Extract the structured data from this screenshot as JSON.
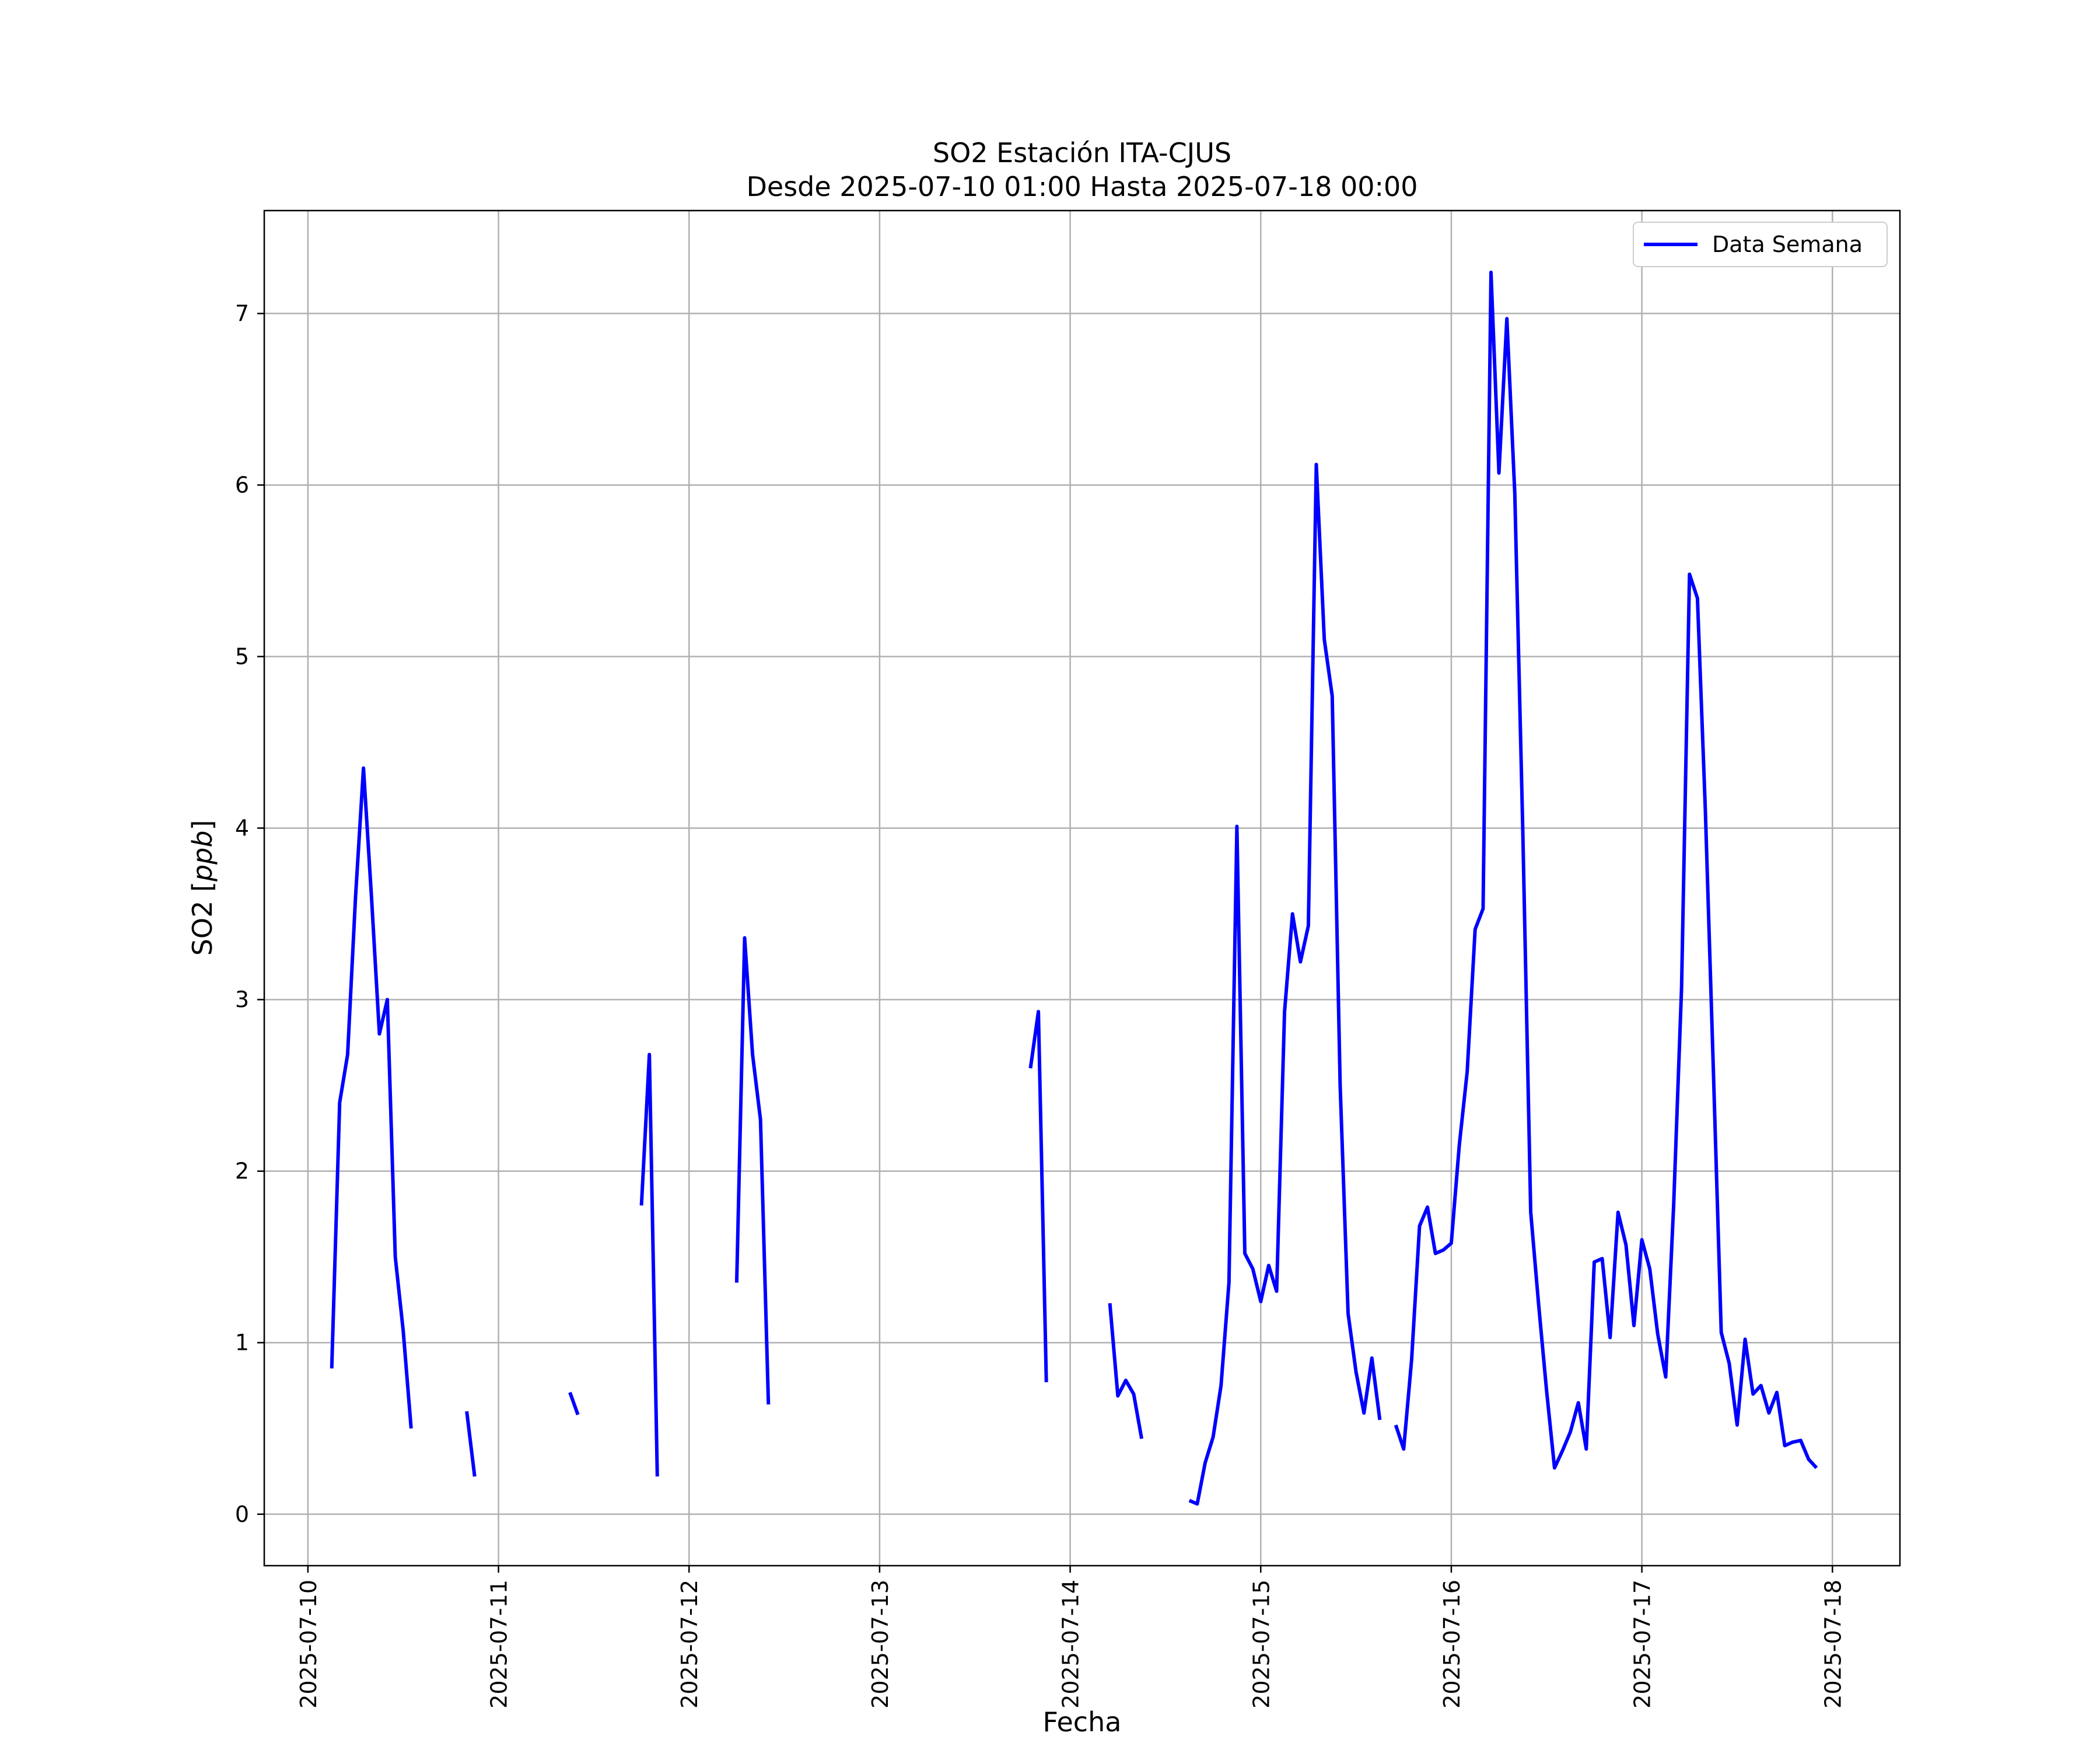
{
  "chart_data": {
    "type": "line",
    "title": "SO2 Estación ITA-CJUS",
    "subtitle": "Desde 2025-07-10 01:00 Hasta 2025-07-18 00:00",
    "xlabel": "Fecha",
    "ylabel_text": "SO2 [",
    "ylabel_unit": "ppb",
    "ylabel_close": "]",
    "ylim": [
      -0.3,
      7.6
    ],
    "xlim": [
      "2025-07-09 18:30",
      "2025-07-18 08:30"
    ],
    "x_ticks": [
      "2025-07-10",
      "2025-07-11",
      "2025-07-12",
      "2025-07-13",
      "2025-07-14",
      "2025-07-15",
      "2025-07-16",
      "2025-07-17",
      "2025-07-18"
    ],
    "y_ticks": [
      0,
      1,
      2,
      3,
      4,
      5,
      6,
      7
    ],
    "grid": true,
    "legend": "upper right",
    "series": [
      {
        "name": "Data Semana",
        "color": "#0000ff",
        "segments": [
          [
            [
              "2025-07-10 03:00",
              0.85
            ],
            [
              "2025-07-10 04:00",
              2.4
            ],
            [
              "2025-07-10 05:00",
              2.68
            ],
            [
              "2025-07-10 06:00",
              3.6
            ],
            [
              "2025-07-10 07:00",
              4.35
            ],
            [
              "2025-07-10 08:00",
              3.6
            ],
            [
              "2025-07-10 09:00",
              2.8
            ],
            [
              "2025-07-10 10:00",
              3.0
            ],
            [
              "2025-07-10 11:00",
              1.5
            ],
            [
              "2025-07-10 12:00",
              1.07
            ],
            [
              "2025-07-10 13:00",
              0.5
            ]
          ],
          [
            [
              "2025-07-10 20:00",
              0.6
            ],
            [
              "2025-07-10 21:00",
              0.22
            ]
          ],
          [
            [
              "2025-07-11 09:00",
              0.71
            ],
            [
              "2025-07-11 10:00",
              0.58
            ]
          ],
          [
            [
              "2025-07-11 18:00",
              1.8
            ],
            [
              "2025-07-11 19:00",
              2.68
            ],
            [
              "2025-07-11 20:00",
              0.22
            ]
          ],
          [
            [
              "2025-07-12 06:00",
              1.35
            ],
            [
              "2025-07-12 07:00",
              3.36
            ],
            [
              "2025-07-12 08:00",
              2.68
            ],
            [
              "2025-07-12 09:00",
              2.3
            ],
            [
              "2025-07-12 10:00",
              0.64
            ]
          ],
          [
            [
              "2025-07-13 19:00",
              2.6
            ],
            [
              "2025-07-13 20:00",
              2.93
            ],
            [
              "2025-07-13 21:00",
              0.77
            ]
          ],
          [
            [
              "2025-07-14 05:00",
              1.23
            ],
            [
              "2025-07-14 06:00",
              0.69
            ],
            [
              "2025-07-14 07:00",
              0.78
            ],
            [
              "2025-07-14 08:00",
              0.7
            ],
            [
              "2025-07-14 09:00",
              0.44
            ]
          ],
          [
            [
              "2025-07-14 15:00",
              0.08
            ],
            [
              "2025-07-14 16:00",
              0.06
            ],
            [
              "2025-07-14 17:00",
              0.3
            ],
            [
              "2025-07-14 18:00",
              0.45
            ],
            [
              "2025-07-14 19:00",
              0.75
            ],
            [
              "2025-07-14 20:00",
              1.35
            ],
            [
              "2025-07-14 21:00",
              4.01
            ],
            [
              "2025-07-14 22:00",
              1.52
            ],
            [
              "2025-07-14 23:00",
              1.43
            ],
            [
              "2025-07-15 00:00",
              1.24
            ],
            [
              "2025-07-15 01:00",
              1.45
            ],
            [
              "2025-07-15 02:00",
              1.3
            ],
            [
              "2025-07-15 03:00",
              2.93
            ],
            [
              "2025-07-15 04:00",
              3.5
            ],
            [
              "2025-07-15 05:00",
              3.22
            ],
            [
              "2025-07-15 06:00",
              3.43
            ],
            [
              "2025-07-15 07:00",
              6.12
            ],
            [
              "2025-07-15 08:00",
              5.1
            ],
            [
              "2025-07-15 09:00",
              4.77
            ],
            [
              "2025-07-15 10:00",
              2.5
            ],
            [
              "2025-07-15 11:00",
              1.17
            ],
            [
              "2025-07-15 12:00",
              0.83
            ],
            [
              "2025-07-15 13:00",
              0.59
            ],
            [
              "2025-07-15 14:00",
              0.91
            ],
            [
              "2025-07-15 15:00",
              0.55
            ]
          ],
          [
            [
              "2025-07-15 17:00",
              0.52
            ],
            [
              "2025-07-15 18:00",
              0.38
            ],
            [
              "2025-07-15 19:00",
              0.9
            ],
            [
              "2025-07-15 20:00",
              1.68
            ],
            [
              "2025-07-15 21:00",
              1.79
            ],
            [
              "2025-07-15 22:00",
              1.52
            ],
            [
              "2025-07-15 23:00",
              1.54
            ],
            [
              "2025-07-16 00:00",
              1.58
            ],
            [
              "2025-07-16 01:00",
              2.15
            ],
            [
              "2025-07-16 02:00",
              2.58
            ],
            [
              "2025-07-16 03:00",
              3.41
            ],
            [
              "2025-07-16 04:00",
              3.53
            ],
            [
              "2025-07-16 05:00",
              7.24
            ],
            [
              "2025-07-16 06:00",
              6.07
            ],
            [
              "2025-07-16 07:00",
              6.97
            ],
            [
              "2025-07-16 08:00",
              5.95
            ],
            [
              "2025-07-16 09:00",
              4.0
            ],
            [
              "2025-07-16 10:00",
              1.76
            ],
            [
              "2025-07-16 11:00",
              1.22
            ],
            [
              "2025-07-16 12:00",
              0.72
            ],
            [
              "2025-07-16 13:00",
              0.27
            ],
            [
              "2025-07-16 14:00",
              0.37
            ],
            [
              "2025-07-16 15:00",
              0.48
            ],
            [
              "2025-07-16 16:00",
              0.65
            ],
            [
              "2025-07-16 17:00",
              0.38
            ],
            [
              "2025-07-16 18:00",
              1.47
            ],
            [
              "2025-07-16 19:00",
              1.49
            ],
            [
              "2025-07-16 20:00",
              1.03
            ],
            [
              "2025-07-16 21:00",
              1.76
            ],
            [
              "2025-07-16 22:00",
              1.57
            ],
            [
              "2025-07-16 23:00",
              1.1
            ],
            [
              "2025-07-17 00:00",
              1.6
            ],
            [
              "2025-07-17 01:00",
              1.43
            ],
            [
              "2025-07-17 02:00",
              1.05
            ],
            [
              "2025-07-17 03:00",
              0.8
            ],
            [
              "2025-07-17 04:00",
              1.8
            ],
            [
              "2025-07-17 05:00",
              3.07
            ],
            [
              "2025-07-17 06:00",
              5.48
            ],
            [
              "2025-07-17 07:00",
              5.34
            ],
            [
              "2025-07-17 08:00",
              4.1
            ],
            [
              "2025-07-17 09:00",
              2.6
            ],
            [
              "2025-07-17 10:00",
              1.06
            ],
            [
              "2025-07-17 11:00",
              0.88
            ],
            [
              "2025-07-17 12:00",
              0.52
            ],
            [
              "2025-07-17 13:00",
              1.02
            ],
            [
              "2025-07-17 14:00",
              0.7
            ],
            [
              "2025-07-17 15:00",
              0.75
            ],
            [
              "2025-07-17 16:00",
              0.59
            ],
            [
              "2025-07-17 17:00",
              0.71
            ],
            [
              "2025-07-17 18:00",
              0.4
            ],
            [
              "2025-07-17 19:00",
              0.42
            ],
            [
              "2025-07-17 20:00",
              0.43
            ],
            [
              "2025-07-17 21:00",
              0.32
            ],
            [
              "2025-07-17 22:00",
              0.27
            ]
          ]
        ]
      }
    ]
  }
}
